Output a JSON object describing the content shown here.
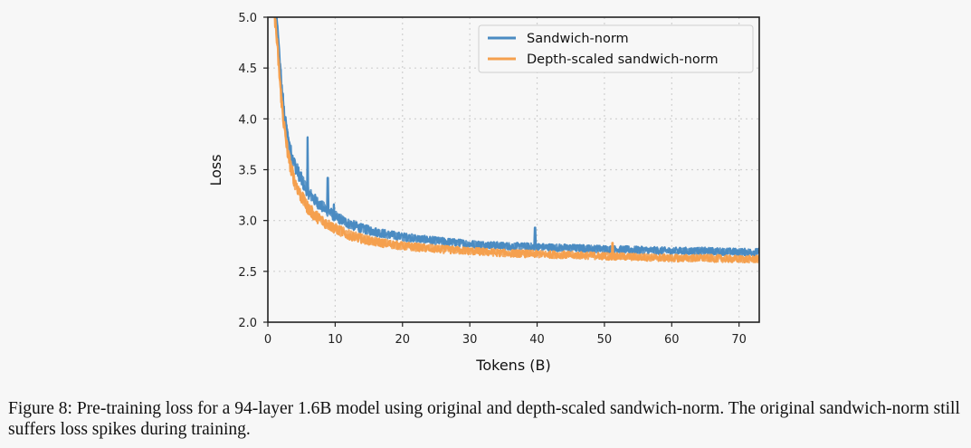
{
  "chart_data": {
    "type": "line",
    "xlabel": "Tokens (B)",
    "ylabel": "Loss",
    "xlim": [
      0,
      73
    ],
    "ylim": [
      2.0,
      5.0
    ],
    "x_ticks": [
      0,
      10,
      20,
      30,
      40,
      50,
      60,
      70
    ],
    "y_ticks": [
      2.0,
      2.5,
      3.0,
      3.5,
      4.0,
      4.5,
      5.0
    ],
    "x_tick_labels": [
      "0",
      "10",
      "20",
      "30",
      "40",
      "50",
      "60",
      "70"
    ],
    "y_tick_labels": [
      "2.0",
      "2.5",
      "3.0",
      "3.5",
      "4.0",
      "4.5",
      "5.0"
    ],
    "grid": true,
    "legend_position": "top-right",
    "series": [
      {
        "name": "Sandwich-norm",
        "color": "#4a8bc2",
        "x": [
          1.2,
          1.5,
          2,
          2.5,
          3,
          3.5,
          4,
          5,
          6,
          7,
          8,
          9,
          10,
          12,
          14,
          16,
          18,
          20,
          25,
          30,
          35,
          40,
          45,
          50,
          55,
          60,
          65,
          70,
          73
        ],
        "y": [
          5.05,
          4.8,
          4.35,
          4.0,
          3.8,
          3.65,
          3.55,
          3.4,
          3.28,
          3.2,
          3.14,
          3.09,
          3.04,
          2.97,
          2.92,
          2.89,
          2.86,
          2.84,
          2.8,
          2.77,
          2.75,
          2.74,
          2.73,
          2.72,
          2.71,
          2.7,
          2.7,
          2.69,
          2.69
        ],
        "spikes": [
          {
            "x": 5.9,
            "y": 3.82
          },
          {
            "x": 8.9,
            "y": 3.42
          },
          {
            "x": 9.8,
            "y": 3.16
          },
          {
            "x": 39.7,
            "y": 2.93
          }
        ]
      },
      {
        "name": "Depth-scaled sandwich-norm",
        "color": "#f5a04e",
        "x": [
          1.0,
          1.3,
          2,
          2.5,
          3,
          3.5,
          4,
          5,
          6,
          7,
          8,
          9,
          10,
          12,
          14,
          16,
          18,
          20,
          25,
          30,
          35,
          40,
          45,
          50,
          55,
          60,
          65,
          70,
          73
        ],
        "y": [
          5.05,
          4.8,
          4.2,
          3.88,
          3.65,
          3.5,
          3.38,
          3.23,
          3.12,
          3.05,
          3.0,
          2.96,
          2.92,
          2.86,
          2.82,
          2.79,
          2.77,
          2.75,
          2.72,
          2.7,
          2.68,
          2.67,
          2.66,
          2.65,
          2.64,
          2.63,
          2.63,
          2.62,
          2.62
        ],
        "spikes": [
          {
            "x": 51.2,
            "y": 2.78
          }
        ]
      }
    ]
  },
  "caption": "Figure 8: Pre-training loss for a 94-layer 1.6B model using original and depth-scaled sandwich-norm. The original sandwich-norm still suffers loss spikes during training."
}
